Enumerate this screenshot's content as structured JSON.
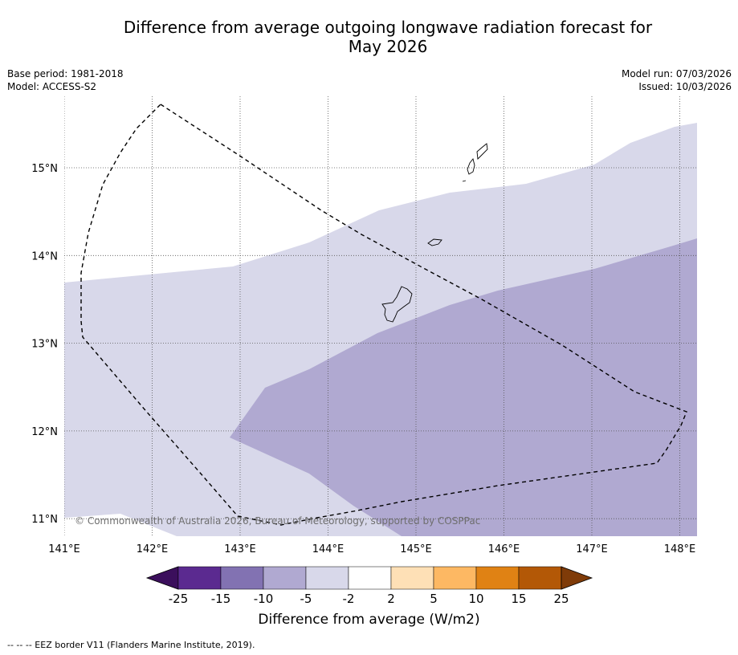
{
  "title": {
    "line1": "Difference from average outgoing longwave radiation forecast for",
    "line2": "May 2026"
  },
  "meta": {
    "base_period": "Base period: 1981-2018",
    "model": "Model: ACCESS-S2",
    "model_run": "Model run: 07/03/2026",
    "issued": "Issued: 10/03/2026"
  },
  "map": {
    "lon_labels": [
      "141°E",
      "142°E",
      "143°E",
      "144°E",
      "145°E",
      "146°E",
      "147°E",
      "148°E"
    ],
    "lat_labels": [
      "15°N",
      "14°N",
      "13°N",
      "12°N",
      "11°N"
    ],
    "copyright": "© Commonwealth of Australia 2026, Bureau of Meteorology, supported by COSPPac",
    "colors": {
      "band_minus5_minus2": "#d8d8ea",
      "band_minus10_minus5": "#b0a9d1",
      "eez_line": "#000000",
      "grid": "#555555"
    }
  },
  "colorbar": {
    "ticks": [
      "-25",
      "-15",
      "-10",
      "-5",
      "-2",
      "2",
      "5",
      "10",
      "15",
      "25"
    ],
    "colors": [
      "#3b0f5c",
      "#5b2a90",
      "#8272b2",
      "#b0a9d1",
      "#d8d8ea",
      "#ffffff",
      "#fee0b6",
      "#fdb863",
      "#e08214",
      "#b35806",
      "#7f3b08"
    ],
    "label": "Difference from average (W/m2)"
  },
  "footnote": "--  --  -- EEZ border V11 (Flanders Marine Institute, 2019)."
}
